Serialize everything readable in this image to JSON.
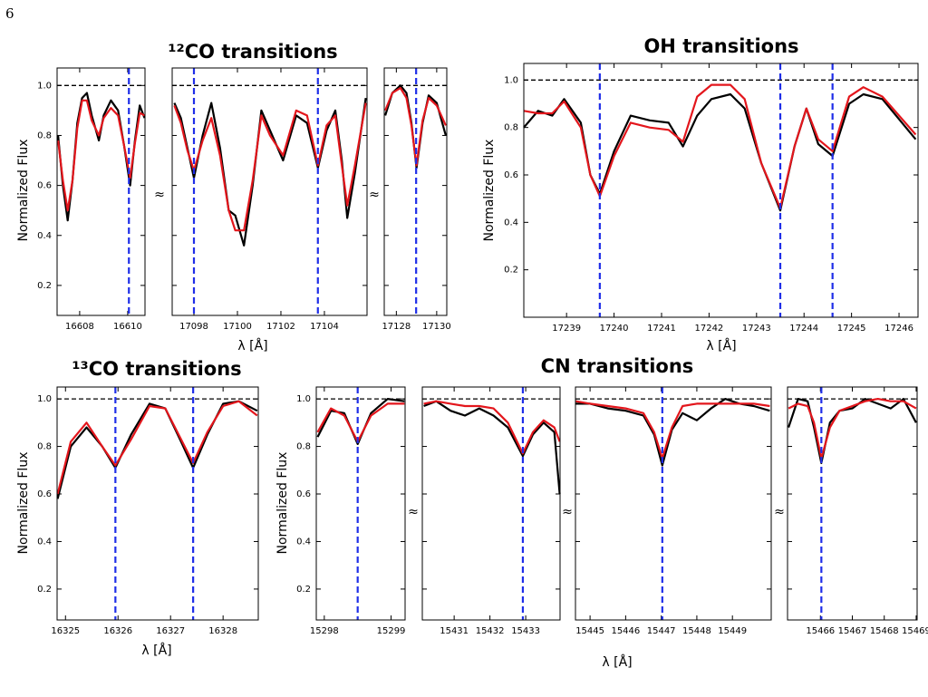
{
  "page_number": "6",
  "chart_data": [
    {
      "type": "line",
      "title": "¹²CO transitions",
      "xlabel": "λ [Å]",
      "ylabel": "Normalized Flux",
      "break": "≈",
      "ylim": [
        0.08,
        1.07
      ],
      "yticks": [
        0.2,
        0.4,
        0.6,
        0.8,
        {
          "value": 1,
          "label": "1.0"
        }
      ],
      "hline": 1,
      "vline_color": "#1f2ee8",
      "panels": [
        {
          "xlim": [
            16607.06,
            16610.72
          ],
          "xticks": [
            16608,
            16610
          ],
          "vlines": [
            16610.05
          ],
          "x": [
            16607.1,
            16607.3,
            16607.5,
            16607.7,
            16607.9,
            16608.1,
            16608.3,
            16608.5,
            16608.8,
            16609.0,
            16609.3,
            16609.6,
            16609.85,
            16610.1,
            16610.3,
            16610.5,
            16610.7
          ],
          "series": [
            {
              "color": "#000000",
              "values": [
                0.8,
                0.6,
                0.46,
                0.62,
                0.85,
                0.95,
                0.97,
                0.88,
                0.78,
                0.88,
                0.94,
                0.9,
                0.76,
                0.6,
                0.78,
                0.92,
                0.87
              ]
            },
            {
              "color": "#e3161c",
              "values": [
                0.78,
                0.62,
                0.5,
                0.62,
                0.83,
                0.94,
                0.94,
                0.86,
                0.8,
                0.87,
                0.91,
                0.88,
                0.76,
                0.63,
                0.77,
                0.89,
                0.88
              ]
            }
          ]
        },
        {
          "xlim": [
            17097.0,
            17105.96
          ],
          "xticks": [
            17098,
            17100,
            17102,
            17104
          ],
          "vlines": [
            17098.0,
            17103.7
          ],
          "x": [
            17097.1,
            17097.4,
            17097.7,
            17098.0,
            17098.4,
            17098.8,
            17099.2,
            17099.6,
            17099.9,
            17100.3,
            17100.7,
            17101.1,
            17101.5,
            17102.1,
            17102.7,
            17103.2,
            17103.7,
            17104.1,
            17104.5,
            17104.8,
            17105.05,
            17105.4,
            17105.9
          ],
          "series": [
            {
              "color": "#000000",
              "values": [
                0.93,
                0.87,
                0.75,
                0.63,
                0.8,
                0.93,
                0.75,
                0.5,
                0.48,
                0.36,
                0.6,
                0.9,
                0.82,
                0.7,
                0.88,
                0.85,
                0.67,
                0.82,
                0.9,
                0.7,
                0.47,
                0.65,
                0.95
              ]
            },
            {
              "color": "#e3161c",
              "values": [
                0.92,
                0.85,
                0.74,
                0.66,
                0.78,
                0.87,
                0.72,
                0.5,
                0.42,
                0.42,
                0.62,
                0.88,
                0.8,
                0.72,
                0.9,
                0.88,
                0.68,
                0.84,
                0.88,
                0.68,
                0.52,
                0.68,
                0.93
              ]
            }
          ]
        },
        {
          "xlim": [
            17127.4,
            17130.5
          ],
          "xticks": [
            17128,
            17130
          ],
          "vlines": [
            17128.98
          ],
          "x": [
            17127.45,
            17127.8,
            17128.2,
            17128.5,
            17128.75,
            17129.0,
            17129.3,
            17129.6,
            17130.0,
            17130.45
          ],
          "series": [
            {
              "color": "#000000",
              "values": [
                0.88,
                0.97,
                1.0,
                0.97,
                0.85,
                0.67,
                0.85,
                0.96,
                0.93,
                0.8
              ]
            },
            {
              "color": "#e3161c",
              "values": [
                0.9,
                0.97,
                0.99,
                0.95,
                0.84,
                0.68,
                0.86,
                0.95,
                0.92,
                0.84
              ]
            }
          ]
        }
      ]
    },
    {
      "type": "line",
      "title": "OH transitions",
      "xlabel": "λ [Å]",
      "ylabel": "Normalized Flux",
      "ylim": [
        0.0,
        1.07
      ],
      "yticks": [
        0.2,
        0.4,
        0.6,
        0.8,
        {
          "value": 1,
          "label": "1.0"
        }
      ],
      "hline": 1,
      "vline_color": "#1f2ee8",
      "panels": [
        {
          "xlim": [
            17238.1,
            17246.4
          ],
          "xticks": [
            17239,
            17240,
            17241,
            17242,
            17243,
            17244,
            17245,
            17246
          ],
          "vlines": [
            17239.7,
            17243.5,
            17244.6
          ],
          "x": [
            17238.1,
            17238.4,
            17238.7,
            17238.95,
            17239.3,
            17239.5,
            17239.7,
            17240.0,
            17240.35,
            17240.75,
            17241.15,
            17241.45,
            17241.75,
            17242.05,
            17242.45,
            17242.75,
            17243.1,
            17243.5,
            17243.8,
            17244.05,
            17244.3,
            17244.6,
            17244.95,
            17245.25,
            17245.65,
            17246.35
          ],
          "series": [
            {
              "color": "#000000",
              "values": [
                0.8,
                0.87,
                0.85,
                0.92,
                0.82,
                0.6,
                0.52,
                0.7,
                0.85,
                0.83,
                0.82,
                0.72,
                0.85,
                0.92,
                0.94,
                0.88,
                0.65,
                0.45,
                0.72,
                0.88,
                0.73,
                0.68,
                0.9,
                0.94,
                0.92,
                0.75
              ]
            },
            {
              "color": "#e3161c",
              "values": [
                0.87,
                0.86,
                0.86,
                0.91,
                0.8,
                0.6,
                0.51,
                0.68,
                0.82,
                0.8,
                0.79,
                0.74,
                0.93,
                0.98,
                0.98,
                0.92,
                0.65,
                0.46,
                0.72,
                0.88,
                0.75,
                0.7,
                0.93,
                0.97,
                0.93,
                0.77
              ]
            }
          ]
        }
      ]
    },
    {
      "type": "line",
      "title": "¹³CO transitions",
      "xlabel": "λ [Å]",
      "ylabel": "Normalized Flux",
      "ylim": [
        0.07,
        1.05
      ],
      "yticks": [
        0.2,
        0.4,
        0.6,
        0.8,
        {
          "value": 1,
          "label": "1.0"
        }
      ],
      "hline": 1,
      "vline_color": "#1f2ee8",
      "panels": [
        {
          "xlim": [
            16324.84,
            16328.67
          ],
          "xticks": [
            16325,
            16326,
            16327,
            16328
          ],
          "vlines": [
            16325.95,
            16327.43
          ],
          "x": [
            16324.85,
            16325.1,
            16325.4,
            16325.7,
            16325.95,
            16326.25,
            16326.6,
            16326.9,
            16327.2,
            16327.43,
            16327.7,
            16328.0,
            16328.3,
            16328.65
          ],
          "series": [
            {
              "color": "#000000",
              "values": [
                0.58,
                0.8,
                0.88,
                0.8,
                0.71,
                0.85,
                0.98,
                0.96,
                0.82,
                0.71,
                0.85,
                0.98,
                0.99,
                0.95
              ]
            },
            {
              "color": "#e3161c",
              "values": [
                0.6,
                0.82,
                0.9,
                0.8,
                0.72,
                0.83,
                0.97,
                0.96,
                0.83,
                0.73,
                0.86,
                0.97,
                0.99,
                0.93
              ]
            }
          ]
        }
      ]
    },
    {
      "type": "line",
      "title": "CN transitions",
      "xlabel": "λ [Å]",
      "ylabel": "Normalized Flux",
      "break": "≈",
      "ylim": [
        0.07,
        1.05
      ],
      "yticks": [
        0.2,
        0.4,
        0.6,
        0.8,
        {
          "value": 1,
          "label": "1.0"
        }
      ],
      "hline": 1,
      "vline_color": "#1f2ee8",
      "panels": [
        {
          "xlim": [
            15297.88,
            15299.21
          ],
          "xticks": [
            15298,
            15299
          ],
          "vlines": [
            15298.5
          ],
          "x": [
            15297.9,
            15298.1,
            15298.3,
            15298.5,
            15298.7,
            15298.95,
            15299.2
          ],
          "series": [
            {
              "color": "#000000",
              "values": [
                0.84,
                0.95,
                0.94,
                0.81,
                0.94,
                1.0,
                0.99
              ]
            },
            {
              "color": "#e3161c",
              "values": [
                0.86,
                0.96,
                0.93,
                0.82,
                0.93,
                0.98,
                0.98
              ]
            }
          ]
        },
        {
          "xlim": [
            15430.11,
            15433.96
          ],
          "xticks": [
            15431,
            15432,
            15433
          ],
          "vlines": [
            15432.92
          ],
          "x": [
            15430.15,
            15430.5,
            15430.9,
            15431.3,
            15431.7,
            15432.1,
            15432.5,
            15432.92,
            15433.2,
            15433.5,
            15433.8,
            15433.95
          ],
          "series": [
            {
              "color": "#000000",
              "values": [
                0.97,
                0.99,
                0.95,
                0.93,
                0.96,
                0.93,
                0.88,
                0.76,
                0.85,
                0.9,
                0.86,
                0.6
              ]
            },
            {
              "color": "#e3161c",
              "values": [
                0.98,
                0.99,
                0.98,
                0.97,
                0.97,
                0.96,
                0.9,
                0.77,
                0.86,
                0.91,
                0.88,
                0.82
              ]
            }
          ]
        },
        {
          "xlim": [
            15444.59,
            15450.09
          ],
          "xticks": [
            15445,
            15446,
            15447,
            15448,
            15449
          ],
          "vlines": [
            15447.03
          ],
          "x": [
            15444.6,
            15445.0,
            15445.5,
            15446.0,
            15446.5,
            15446.8,
            15447.03,
            15447.3,
            15447.6,
            15448.0,
            15448.4,
            15448.8,
            15449.2,
            15449.6,
            15450.05
          ],
          "series": [
            {
              "color": "#000000",
              "values": [
                0.98,
                0.98,
                0.96,
                0.95,
                0.93,
                0.85,
                0.72,
                0.87,
                0.94,
                0.91,
                0.96,
                1.0,
                0.98,
                0.97,
                0.95
              ]
            },
            {
              "color": "#e3161c",
              "values": [
                0.99,
                0.98,
                0.97,
                0.96,
                0.94,
                0.86,
                0.75,
                0.88,
                0.97,
                0.98,
                0.98,
                0.98,
                0.98,
                0.98,
                0.97
              ]
            }
          ]
        },
        {
          "xlim": [
            15464.97,
            15469.03
          ],
          "xticks": [
            15466,
            15467,
            15468,
            15469
          ],
          "vlines": [
            15466.03
          ],
          "x": [
            15465.0,
            15465.3,
            15465.6,
            15465.8,
            15466.03,
            15466.3,
            15466.6,
            15467.0,
            15467.4,
            15467.8,
            15468.2,
            15468.6,
            15469.0
          ],
          "series": [
            {
              "color": "#000000",
              "values": [
                0.88,
                1.0,
                0.99,
                0.88,
                0.73,
                0.9,
                0.95,
                0.96,
                1.0,
                0.98,
                0.96,
                1.0,
                0.9
              ]
            },
            {
              "color": "#e3161c",
              "values": [
                0.96,
                0.98,
                0.97,
                0.9,
                0.75,
                0.88,
                0.95,
                0.97,
                0.99,
                1.0,
                0.99,
                0.99,
                0.96
              ]
            }
          ]
        }
      ]
    }
  ]
}
